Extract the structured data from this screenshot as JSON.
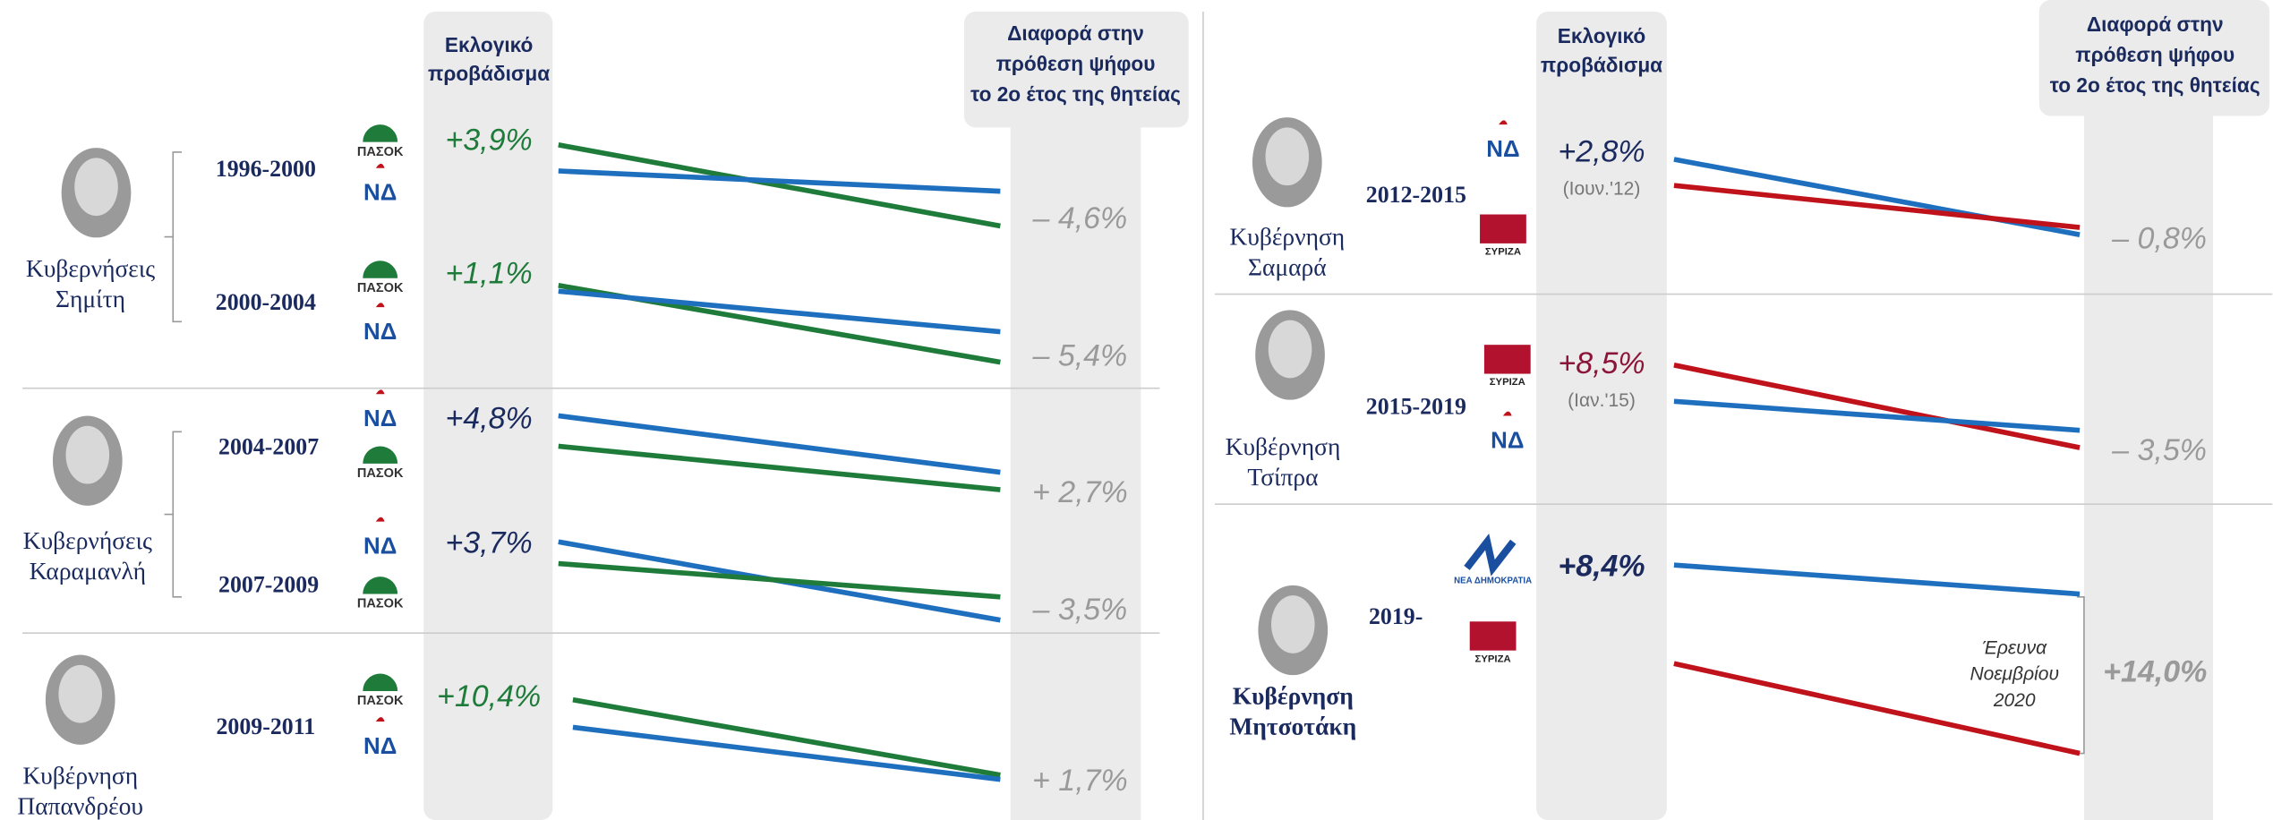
{
  "panels": [
    {
      "header_vote": [
        "Εκλογικό",
        "προβάδισμα"
      ],
      "header_diff": [
        "Διαφορά στην",
        "πρόθεση ψήφου",
        "το 2ο έτος της θητείας"
      ],
      "groups": [
        {
          "name": [
            "Κυβερνήσεις",
            "Σημίτη"
          ],
          "terms": [
            {
              "period": "1996-2000",
              "lead": "+3,9%",
              "diff": "– 4,6%",
              "logos": [
                "ΠΑΣΟΚ",
                "ΝΔ"
              ]
            },
            {
              "period": "2000-2004",
              "lead": "+1,1%",
              "diff": "– 5,4%",
              "logos": [
                "ΠΑΣΟΚ",
                "ΝΔ"
              ]
            }
          ]
        },
        {
          "name": [
            "Κυβερνήσεις",
            "Καραμανλή"
          ],
          "terms": [
            {
              "period": "2004-2007",
              "lead": "+4,8%",
              "diff": "+ 2,7%",
              "logos": [
                "ΝΔ",
                "ΠΑΣΟΚ"
              ]
            },
            {
              "period": "2007-2009",
              "lead": "+3,7%",
              "diff": "– 3,5%",
              "logos": [
                "ΝΔ",
                "ΠΑΣΟΚ"
              ]
            }
          ]
        },
        {
          "name": [
            "Κυβέρνηση",
            "Παπανδρέου"
          ],
          "terms": [
            {
              "period": "2009-2011",
              "lead": "+10,4%",
              "diff": "+ 1,7%",
              "logos": [
                "ΠΑΣΟΚ",
                "ΝΔ"
              ]
            }
          ]
        }
      ]
    },
    {
      "header_vote": [
        "Εκλογικό",
        "προβάδισμα"
      ],
      "header_diff": [
        "Διαφορά στην",
        "πρόθεση ψήφου",
        "το 2ο έτος της θητείας"
      ],
      "groups": [
        {
          "name": [
            "Κυβέρνηση",
            "Σαμαρά"
          ],
          "terms": [
            {
              "period": "2012-2015",
              "lead": "+2,8%",
              "lead_note": "(Ιουν.'12)",
              "diff": "– 0,8%",
              "logos": [
                "ΝΔ",
                "ΣΥΡΙΖΑ"
              ]
            }
          ]
        },
        {
          "name": [
            "Κυβέρνηση",
            "Τσίπρα"
          ],
          "terms": [
            {
              "period": "2015-2019",
              "lead": "+8,5%",
              "lead_note": "(Ιαν.'15)",
              "diff": "– 3,5%",
              "logos": [
                "ΣΥΡΙΖΑ",
                "ΝΔ"
              ]
            }
          ]
        },
        {
          "name": [
            "Κυβέρνηση",
            "Μητσοτάκη"
          ],
          "terms": [
            {
              "period": "2019-",
              "lead": "+8,4%",
              "diff": "+14,0%",
              "note": [
                "Έρευνα",
                "Νοεμβρίου",
                "2020"
              ],
              "logos": [
                "ΝΕΑ ΔΗΜΟΚΡΑΤΙΑ",
                "ΣΥΡΙΖΑ"
              ]
            }
          ]
        }
      ]
    }
  ]
}
